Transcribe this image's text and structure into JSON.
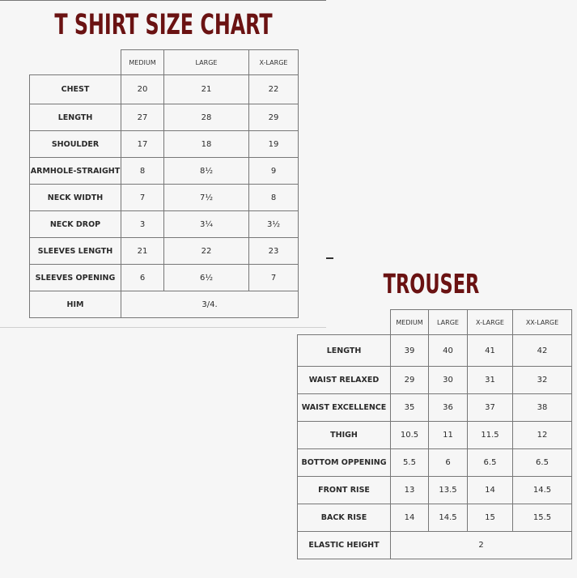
{
  "tshirt": {
    "title": "T SHIRT SIZE CHART",
    "columns": [
      "MEDIUM",
      "LARGE",
      "X-LARGE"
    ],
    "rows": [
      {
        "label": "CHEST",
        "values": [
          "20",
          "21",
          "22"
        ]
      },
      {
        "label": "LENGTH",
        "values": [
          "27",
          "28",
          "29"
        ]
      },
      {
        "label": "SHOULDER",
        "values": [
          "17",
          "18",
          "19"
        ]
      },
      {
        "label": "ARMHOLE-STRAIGHT",
        "values": [
          "8",
          "8½",
          "9"
        ]
      },
      {
        "label": "NECK WIDTH",
        "values": [
          "7",
          "7½",
          "8"
        ]
      },
      {
        "label": "NECK DROP",
        "values": [
          "3",
          "3¼",
          "3½"
        ]
      },
      {
        "label": "SLEEVES LENGTH",
        "values": [
          "21",
          "22",
          "23"
        ]
      },
      {
        "label": "SLEEVES OPENING",
        "values": [
          "6",
          "6½",
          "7"
        ]
      },
      {
        "label": "HIM",
        "merged": "3/4."
      }
    ]
  },
  "trouser": {
    "title": "TROUSER",
    "columns": [
      "MEDIUM",
      "LARGE",
      "X-LARGE",
      "XX-LARGE"
    ],
    "rows": [
      {
        "label": "LENGTH",
        "values": [
          "39",
          "40",
          "41",
          "42"
        ]
      },
      {
        "label": "WAIST RELAXED",
        "values": [
          "29",
          "30",
          "31",
          "32"
        ]
      },
      {
        "label": "WAIST EXCELLENCE",
        "values": [
          "35",
          "36",
          "37",
          "38"
        ]
      },
      {
        "label": "THIGH",
        "values": [
          "10.5",
          "11",
          "11.5",
          "12"
        ]
      },
      {
        "label": "BOTTOM OPPENING",
        "values": [
          "5.5",
          "6",
          "6.5",
          "6.5"
        ]
      },
      {
        "label": "FRONT RISE",
        "values": [
          "13",
          "13.5",
          "14",
          "14.5"
        ]
      },
      {
        "label": "BACK RISE",
        "values": [
          "14",
          "14.5",
          "15",
          "15.5"
        ]
      },
      {
        "label": "ELASTIC HEIGHT",
        "merged": "2"
      }
    ]
  },
  "colors": {
    "title": "#6a1212",
    "grid": "#777777",
    "background": "#f6f6f6"
  }
}
